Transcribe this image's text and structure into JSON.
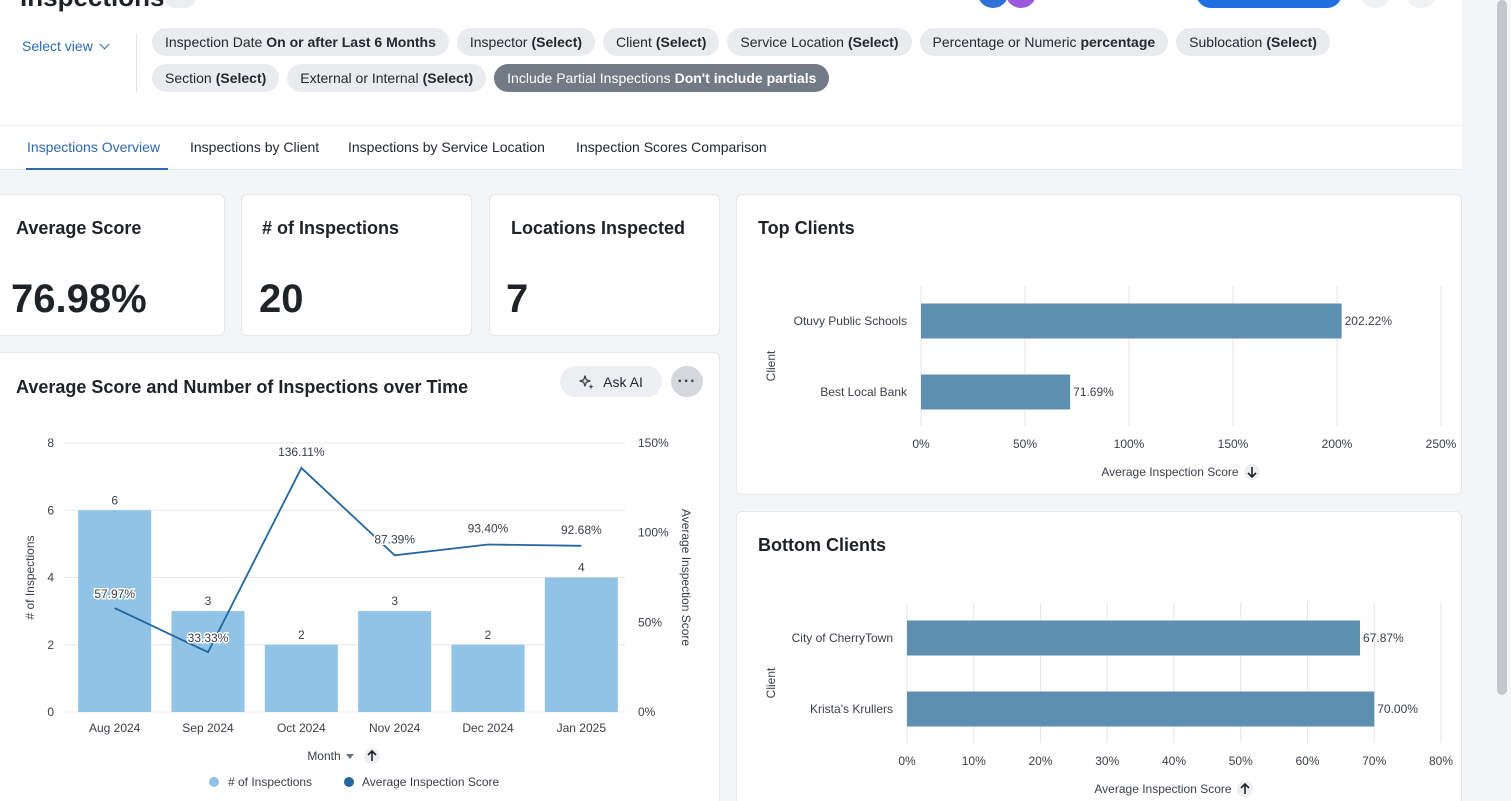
{
  "header": {
    "title": "Inspections",
    "select_view": "Select view"
  },
  "filters": [
    {
      "label": "Inspection Date",
      "value": "On or after Last 6 Months",
      "active": false
    },
    {
      "label": "Inspector",
      "value": "(Select)",
      "active": false
    },
    {
      "label": "Client",
      "value": "(Select)",
      "active": false
    },
    {
      "label": "Service Location",
      "value": "(Select)",
      "active": false
    },
    {
      "label": "Percentage or Numeric",
      "value": "percentage",
      "active": false
    },
    {
      "label": "Sublocation",
      "value": "(Select)",
      "active": false
    },
    {
      "label": "Section",
      "value": "(Select)",
      "active": false
    },
    {
      "label": "External or Internal",
      "value": "(Select)",
      "active": false
    },
    {
      "label": "Include Partial Inspections",
      "value": "Don't include partials",
      "active": true
    }
  ],
  "tabs": [
    {
      "label": "Inspections Overview",
      "active": true
    },
    {
      "label": "Inspections by Client",
      "active": false
    },
    {
      "label": "Inspections by Service Location",
      "active": false
    },
    {
      "label": "Inspection Scores Comparison",
      "active": false
    }
  ],
  "kpis": [
    {
      "title": "Average Score",
      "value": "76.98%"
    },
    {
      "title": "# of Inspections",
      "value": "20"
    },
    {
      "title": "Locations Inspected",
      "value": "7"
    }
  ],
  "combo_card": {
    "title": "Average Score and Number of Inspections over Time",
    "ask_ai": "Ask AI",
    "more": "···"
  },
  "top_card": {
    "title": "Top Clients"
  },
  "bottom_card": {
    "title": "Bottom Clients"
  },
  "icons": {
    "ask_ai": "ai-sparkle-icon",
    "sort_down": "arrow-down-icon",
    "sort_up": "arrow-up-icon"
  },
  "colors": {
    "accent": "#2d6ab0",
    "bar_light": "#90c3e6",
    "line_dark": "#2466a0",
    "bar_hbar": "#5e8fb0",
    "active_pill": "#727a86"
  },
  "chart_data": [
    {
      "type": "bar",
      "subtype": "bar+line",
      "title": "Average Score and Number of Inspections over Time",
      "categories": [
        "Aug 2024",
        "Sep 2024",
        "Oct 2024",
        "Nov 2024",
        "Dec 2024",
        "Jan 2025"
      ],
      "series": [
        {
          "name": "# of Inspections",
          "type": "bar",
          "axis": "left",
          "values": [
            6,
            3,
            2,
            3,
            2,
            4
          ],
          "labels": [
            "6",
            "3",
            "2",
            "3",
            "2",
            "4"
          ]
        },
        {
          "name": "Average Inspection Score",
          "type": "line",
          "axis": "right",
          "values": [
            57.97,
            33.33,
            136.11,
            87.39,
            93.4,
            92.68
          ],
          "labels": [
            "57.97%",
            "33.33%",
            "136.11%",
            "87.39%",
            "93.40%",
            "92.68%"
          ]
        }
      ],
      "xlabel": "Month",
      "ylabel": "# of Inspections",
      "y2label": "Average Inspection Score",
      "ylim": [
        0,
        8
      ],
      "yticks": [
        "0",
        "2",
        "4",
        "6",
        "8"
      ],
      "y2lim": [
        0,
        150
      ],
      "y2ticks": [
        "0%",
        "50%",
        "100%",
        "150%"
      ],
      "legend": [
        "# of Inspections",
        "Average Inspection Score"
      ],
      "legend_position": "bottom",
      "grid": true
    },
    {
      "type": "bar",
      "orientation": "horizontal",
      "title": "Top Clients",
      "categories": [
        "Otuvy Public Schools",
        "Best Local Bank"
      ],
      "values": [
        202.22,
        71.69
      ],
      "labels": [
        "202.22%",
        "71.69%"
      ],
      "xlabel": "Average Inspection Score",
      "ylabel": "Client",
      "xlim": [
        0,
        250
      ],
      "xticks": [
        "0%",
        "50%",
        "100%",
        "150%",
        "200%",
        "250%"
      ],
      "grid": true
    },
    {
      "type": "bar",
      "orientation": "horizontal",
      "title": "Bottom Clients",
      "categories": [
        "City of CherryTown",
        "Krista's Krullers"
      ],
      "values": [
        67.87,
        70.0
      ],
      "labels": [
        "67.87%",
        "70.00%"
      ],
      "xlabel": "Average Inspection Score",
      "ylabel": "Client",
      "xlim": [
        0,
        80
      ],
      "xticks": [
        "0%",
        "10%",
        "20%",
        "30%",
        "40%",
        "50%",
        "60%",
        "70%",
        "80%"
      ],
      "grid": true
    }
  ]
}
